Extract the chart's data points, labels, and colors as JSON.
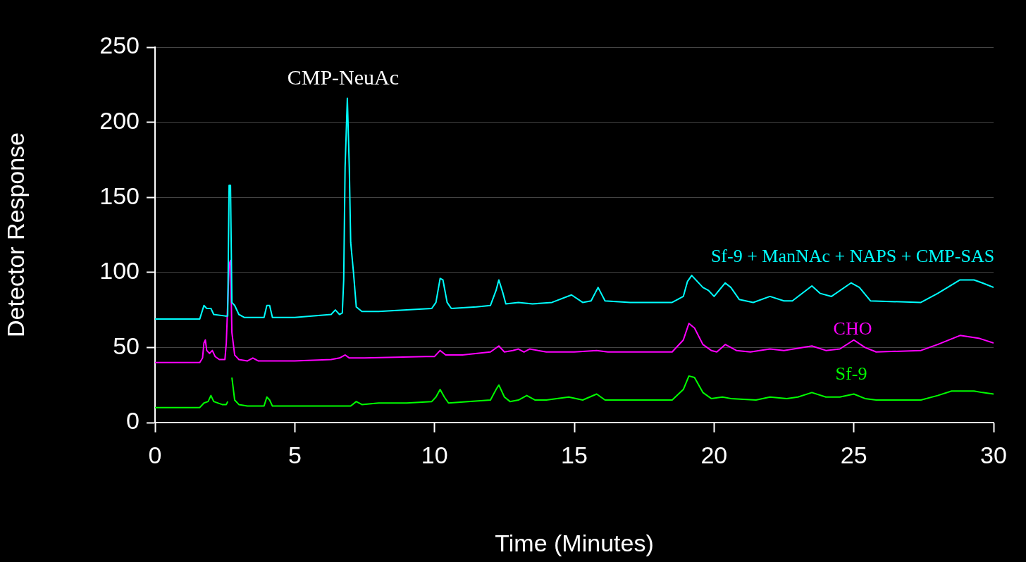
{
  "chart_data": {
    "type": "line",
    "xlabel": "Time (Minutes)",
    "ylabel": "Detector Response",
    "xlim": [
      0,
      30
    ],
    "xticks": [
      0,
      5,
      10,
      15,
      20,
      25,
      30
    ],
    "ylim": [
      0,
      250
    ],
    "yticks": [
      0,
      50,
      100,
      150,
      200,
      250
    ],
    "grid": "y",
    "legend": false,
    "marker": "none",
    "line_style": "solid",
    "annotations": [
      {
        "text": "CMP-NeuAc",
        "x": 6.88,
        "y": 216
      }
    ],
    "series": [
      {
        "name": "Sf-9 + ManNAc + NAPS + CMP-SAS",
        "color": "#00ffff",
        "x": [
          0,
          1.6,
          1.7,
          1.75,
          1.85,
          2.0,
          2.1,
          2.5,
          2.6,
          2.65,
          2.7,
          2.75,
          2.85,
          3.0,
          3.2,
          3.5,
          3.9,
          4.0,
          4.1,
          4.2,
          5,
          6.3,
          6.45,
          6.6,
          6.7,
          6.75,
          6.8,
          6.88,
          6.95,
          7.0,
          7.1,
          7.2,
          7.4,
          8,
          9,
          9.9,
          10.05,
          10.2,
          10.3,
          10.45,
          10.6,
          11.5,
          12,
          12.2,
          12.3,
          12.45,
          12.55,
          13,
          13.5,
          14.2,
          14.9,
          15.3,
          15.6,
          15.85,
          16.1,
          17,
          18.5,
          18.9,
          19.05,
          19.2,
          19.4,
          19.6,
          19.8,
          20.0,
          20.4,
          20.6,
          20.9,
          21.4,
          22.0,
          22.5,
          22.8,
          23.5,
          23.8,
          24.2,
          24.9,
          25.2,
          25.6,
          27.4,
          28.0,
          28.8,
          29.3,
          29.6,
          30
        ],
        "values": [
          69,
          69,
          75,
          78,
          76,
          76,
          72,
          71,
          71,
          158,
          158,
          80,
          78,
          72,
          70,
          70,
          70,
          78,
          78,
          70,
          70,
          72,
          75,
          72,
          73,
          95,
          170,
          216,
          170,
          120,
          100,
          77,
          74,
          74,
          75,
          76,
          80,
          96,
          95,
          80,
          76,
          77,
          78,
          88,
          95,
          86,
          79,
          80,
          79,
          80,
          85,
          80,
          81,
          90,
          81,
          80,
          80,
          84,
          94,
          98,
          94,
          90,
          88,
          84,
          93,
          90,
          82,
          80,
          84,
          81,
          81,
          91,
          86,
          84,
          93,
          90,
          81,
          80,
          86,
          95,
          95,
          93,
          90
        ]
      },
      {
        "name": "CHO",
        "color": "#ff00ff",
        "x": [
          0,
          1.6,
          1.7,
          1.75,
          1.8,
          1.85,
          1.95,
          2.05,
          2.15,
          2.3,
          2.5,
          2.55,
          2.65,
          2.7,
          2.75,
          2.85,
          3.0,
          3.3,
          3.5,
          3.7,
          5,
          6.3,
          6.6,
          6.8,
          6.95,
          7.5,
          9.7,
          10.0,
          10.2,
          10.4,
          11,
          12,
          12.3,
          12.5,
          12.8,
          13.0,
          13.2,
          13.4,
          14,
          15,
          15.8,
          16.2,
          18.5,
          18.9,
          19.1,
          19.3,
          19.6,
          19.9,
          20.1,
          20.4,
          20.8,
          21.3,
          22,
          22.5,
          23.5,
          24,
          24.5,
          25.0,
          25.4,
          25.8,
          27.4,
          28.0,
          28.8,
          29.5,
          30
        ],
        "values": [
          40,
          40,
          43,
          53,
          55,
          48,
          46,
          48,
          44,
          42,
          42,
          53,
          105,
          108,
          60,
          45,
          42,
          41,
          43,
          41,
          41,
          42,
          43,
          45,
          43,
          43,
          44,
          44,
          48,
          45,
          45,
          47,
          51,
          47,
          48,
          49,
          47,
          49,
          47,
          47,
          48,
          47,
          47,
          55,
          66,
          63,
          52,
          48,
          47,
          52,
          48,
          47,
          49,
          48,
          51,
          48,
          49,
          55,
          50,
          47,
          48,
          52,
          58,
          56,
          53
        ]
      },
      {
        "name": "Sf-9",
        "color": "#00ff00",
        "x": [
          0,
          1.6,
          1.75,
          1.9,
          2.0,
          2.1,
          2.4,
          2.55,
          2.6,
          2.65,
          2.7,
          2.75,
          2.85,
          3.0,
          3.3,
          3.9,
          4.0,
          4.1,
          4.2,
          5,
          7,
          7.2,
          7.4,
          8,
          9,
          9.9,
          10.05,
          10.2,
          10.35,
          10.5,
          11.2,
          12.0,
          12.2,
          12.3,
          12.5,
          12.7,
          13.0,
          13.3,
          13.6,
          14,
          14.8,
          15.3,
          15.8,
          16.1,
          18.5,
          18.9,
          19.1,
          19.3,
          19.6,
          19.9,
          20.3,
          20.6,
          21.5,
          22,
          22.6,
          23.0,
          23.5,
          24,
          24.5,
          25,
          25.4,
          25.8,
          27.4,
          28.0,
          28.5,
          29.3,
          29.6,
          30
        ],
        "values": [
          10,
          10,
          13,
          14,
          18,
          14,
          12,
          12,
          14,
          null,
          null,
          30,
          15,
          12,
          11,
          11,
          17,
          15,
          11,
          11,
          11,
          14,
          12,
          13,
          13,
          14,
          17,
          22,
          17,
          13,
          14,
          15,
          22,
          25,
          17,
          14,
          15,
          18,
          15,
          15,
          17,
          15,
          19,
          15,
          15,
          22,
          31,
          30,
          20,
          16,
          17,
          16,
          15,
          17,
          16,
          17,
          20,
          17,
          17,
          19,
          16,
          15,
          15,
          18,
          21,
          21,
          20,
          19
        ]
      }
    ]
  }
}
